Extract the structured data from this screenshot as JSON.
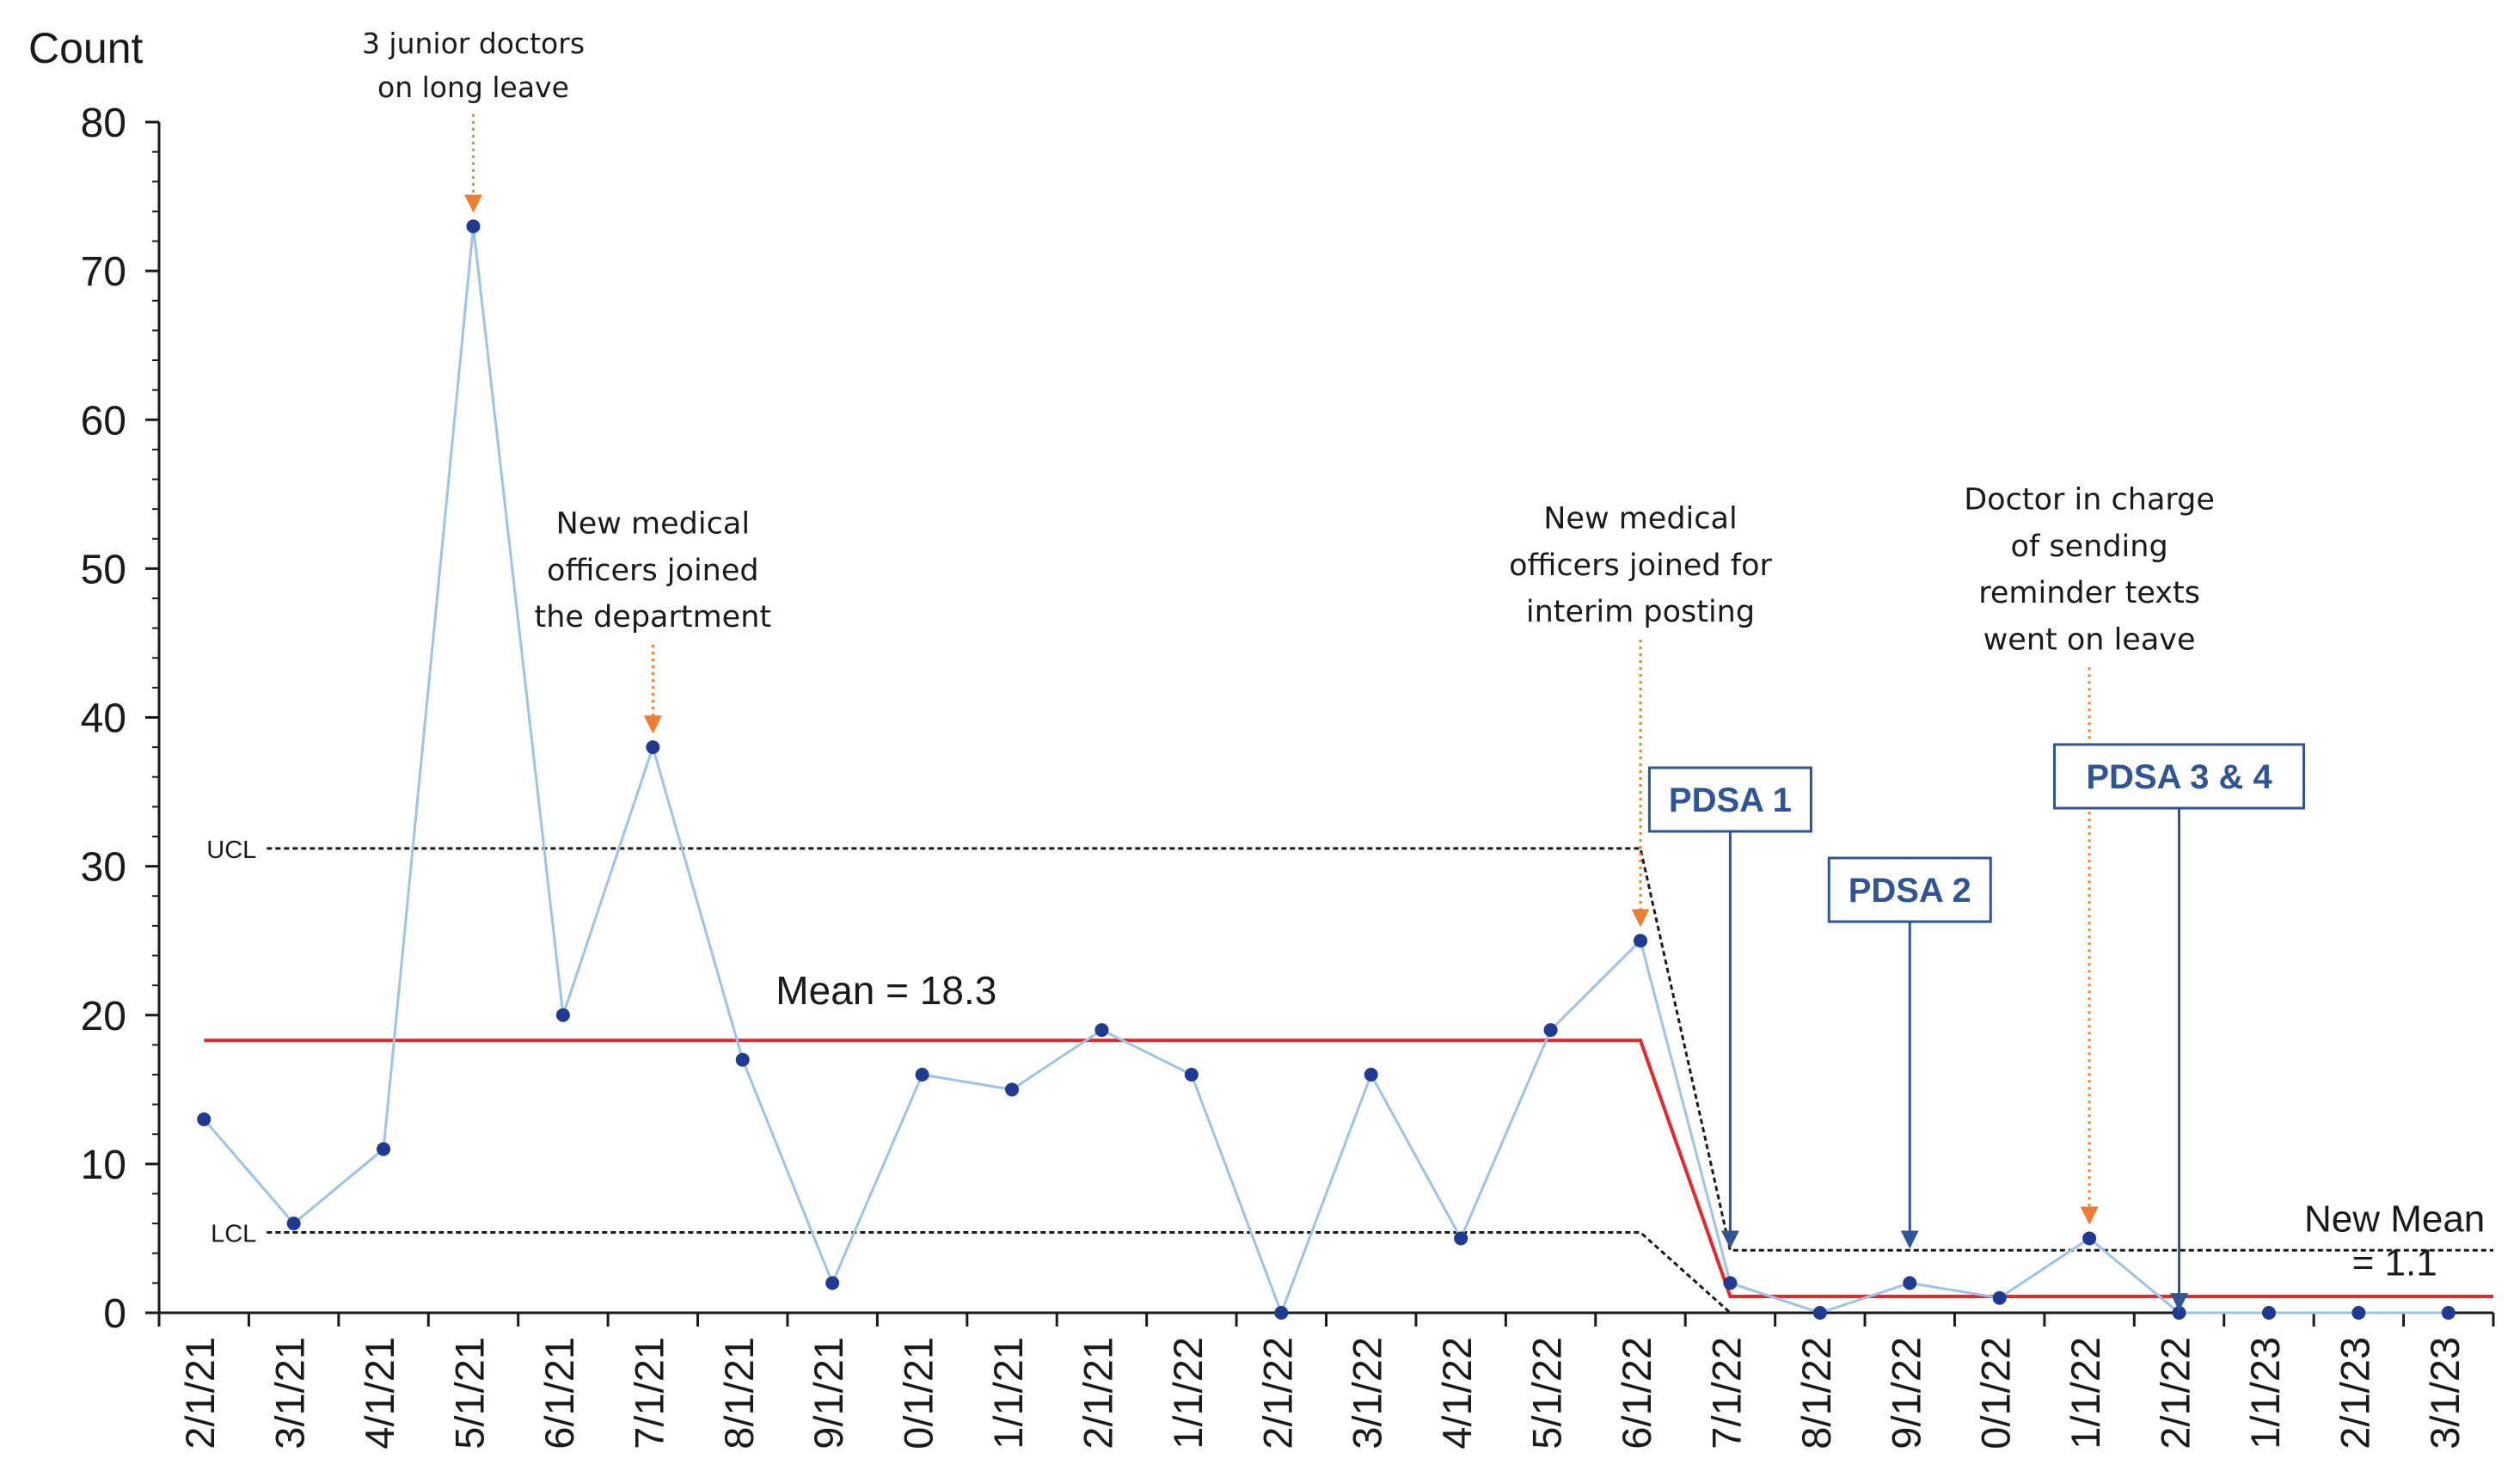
{
  "chart_data": {
    "type": "line",
    "title": "",
    "ylabel": "Count",
    "xlabel": "",
    "ylim": [
      0,
      80
    ],
    "yticks": [
      0,
      10,
      20,
      30,
      40,
      50,
      60,
      70,
      80
    ],
    "categories": [
      "2/1/21",
      "3/1/21",
      "4/1/21",
      "5/1/21",
      "6/1/21",
      "7/1/21",
      "8/1/21",
      "9/1/21",
      "0/1/21",
      "1/1/21",
      "2/1/21",
      "1/1/22",
      "2/1/22",
      "3/1/22",
      "4/1/22",
      "5/1/22",
      "6/1/22",
      "7/1/22",
      "8/1/22",
      "9/1/22",
      "0/1/22",
      "1/1/22",
      "2/1/22",
      "1/1/23",
      "2/1/23",
      "3/1/23"
    ],
    "series": [
      {
        "values": [
          13,
          6,
          11,
          73,
          20,
          38,
          17,
          2,
          16,
          15,
          19,
          16,
          0,
          16,
          5,
          19,
          25,
          2,
          0,
          2,
          1,
          5,
          0,
          0,
          0,
          0
        ]
      }
    ],
    "control_lines": {
      "baseline": {
        "mean": 18.3,
        "ucl": 31.2,
        "lcl": 5.4
      },
      "new": {
        "mean": 1.1,
        "ucl": 4.2,
        "lcl": 0
      },
      "labels": {
        "ucl": "UCL",
        "lcl": "LCL",
        "mean": "Mean = 18.3",
        "new_mean_line1": "New Mean",
        "new_mean_line2": "= 1.1"
      }
    },
    "annotations": [
      {
        "index": 3,
        "lines": [
          "3 junior doctors",
          "on long leave"
        ]
      },
      {
        "index": 5,
        "lines": [
          "New medical",
          "officers joined",
          "the department"
        ]
      },
      {
        "index": 16,
        "lines": [
          "New medical",
          "officers joined for",
          "interim posting"
        ]
      },
      {
        "index": 21,
        "lines": [
          "Doctor in charge",
          "of sending",
          "reminder texts",
          "went on leave"
        ]
      }
    ],
    "pdsa": [
      {
        "label": "PDSA 1",
        "index": 17
      },
      {
        "label": "PDSA 2",
        "index": 19
      },
      {
        "label": "PDSA 3 & 4",
        "index": 22
      }
    ],
    "colors": {
      "series_line": "#9dc3e6",
      "marker": "#1f3a93",
      "mean": "#e8262c",
      "limits": "#1a1a1a",
      "annotation_arrow": "#ed7d31",
      "pdsa": "#2f5597",
      "axis": "#1a1a1a"
    }
  }
}
